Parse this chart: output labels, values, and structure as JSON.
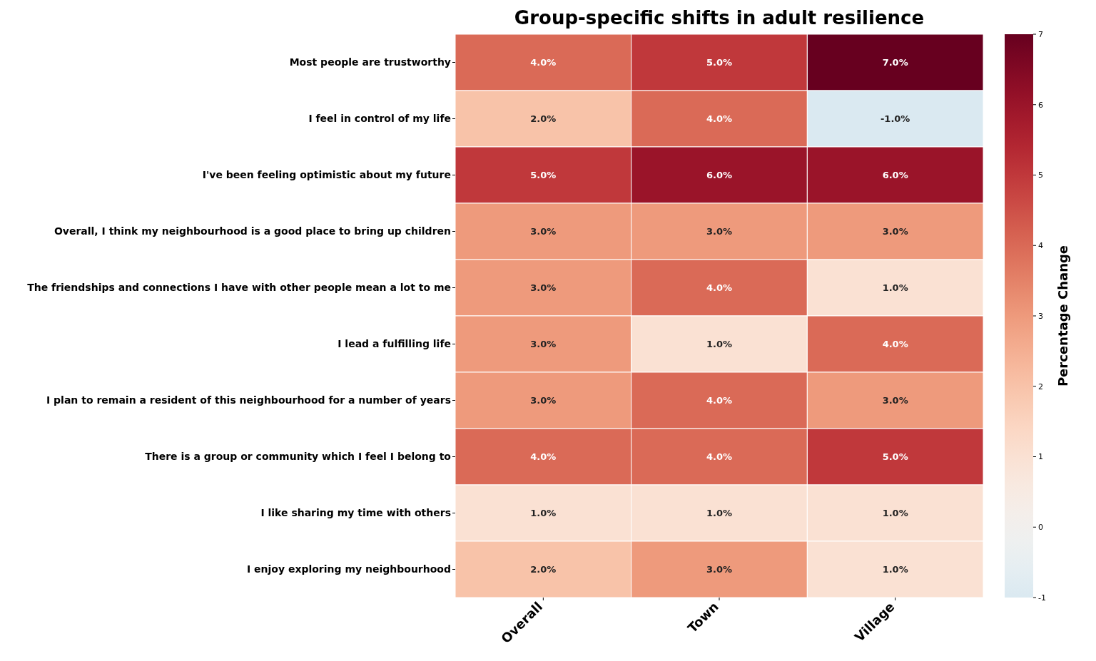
{
  "chart_data": {
    "type": "heatmap",
    "title": "Group-specific shifts in adult resilience",
    "clabel": "Percentage Change",
    "categories": [
      "Overall",
      "Town",
      "Village"
    ],
    "y_categories": [
      "Most people are trustworthy",
      "I feel in control of my life",
      "I've been feeling optimistic about my future",
      "Overall, I think my neighbourhood is a good place to bring up children",
      "The friendships and connections I have with other people mean a lot to me",
      "I lead a fulfilling life",
      "I plan to remain a resident of this neighbourhood for a number of years",
      "There is a group or community which I feel I belong to",
      "I like sharing my time with others",
      "I enjoy exploring my neighbourhood"
    ],
    "cells": [
      [
        4,
        5,
        7
      ],
      [
        2,
        4,
        -1
      ],
      [
        5,
        6,
        6
      ],
      [
        3,
        3,
        3
      ],
      [
        3,
        4,
        1
      ],
      [
        3,
        1,
        4
      ],
      [
        3,
        4,
        3
      ],
      [
        4,
        4,
        5
      ],
      [
        1,
        1,
        1
      ],
      [
        2,
        3,
        1
      ]
    ],
    "cell_labels": [
      [
        "4.0%",
        "5.0%",
        "7.0%"
      ],
      [
        "2.0%",
        "4.0%",
        "-1.0%"
      ],
      [
        "5.0%",
        "6.0%",
        "6.0%"
      ],
      [
        "3.0%",
        "3.0%",
        "3.0%"
      ],
      [
        "3.0%",
        "4.0%",
        "1.0%"
      ],
      [
        "3.0%",
        "1.0%",
        "4.0%"
      ],
      [
        "3.0%",
        "4.0%",
        "3.0%"
      ],
      [
        "4.0%",
        "4.0%",
        "5.0%"
      ],
      [
        "1.0%",
        "1.0%",
        "1.0%"
      ],
      [
        "2.0%",
        "3.0%",
        "1.0%"
      ]
    ],
    "clim": [
      -1,
      7
    ],
    "cticks": [
      -1,
      0,
      1,
      2,
      3,
      4,
      5,
      6,
      7
    ]
  }
}
